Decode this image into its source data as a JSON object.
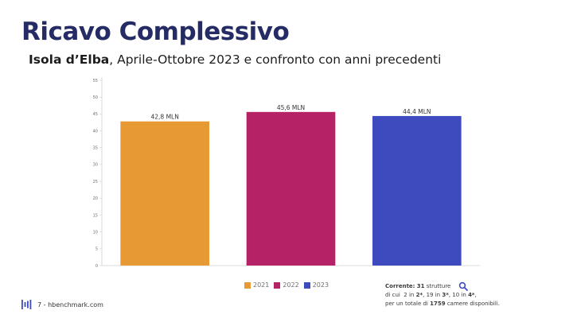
{
  "header": {
    "title": "Ricavo Complessivo",
    "subtitle_strong": "Isola d’Elba",
    "subtitle_rest": ", Aprile-Ottobre 2023 e confronto con anni precedenti"
  },
  "chart_data": {
    "type": "bar",
    "categories": [
      "2021",
      "2022",
      "2023"
    ],
    "values": [
      42.8,
      45.6,
      44.4
    ],
    "data_labels": [
      "42,8 MLN",
      "45,6 MLN",
      "44,4 MLN"
    ],
    "colors": [
      "#e79a34",
      "#b52266",
      "#3d4bbf"
    ],
    "ylim": [
      0,
      55
    ],
    "yticks": [
      0,
      5,
      10,
      15,
      20,
      25,
      30,
      35,
      40,
      45,
      50,
      55
    ],
    "legend": [
      "2021",
      "2022",
      "2023"
    ],
    "legend_position": "bottom",
    "grid": false
  },
  "note": {
    "line1_prefix": "Corrente: ",
    "line1_count": "31",
    "line1_suffix": " strutture",
    "line2_a": "di cui  2 in ",
    "line2_b": "2*",
    "line2_c": ", 19 in ",
    "line2_d": "3*",
    "line2_e": ", 10 in ",
    "line2_f": "4*",
    "line2_g": ",",
    "line3_a": "per un totale di ",
    "line3_b": "1759",
    "line3_c": " camere disponibili."
  },
  "footer": {
    "page_text": "7 - hbenchmark.com"
  },
  "icons": {
    "search": "search-icon",
    "logo": "hbenchmark-logo-icon"
  }
}
